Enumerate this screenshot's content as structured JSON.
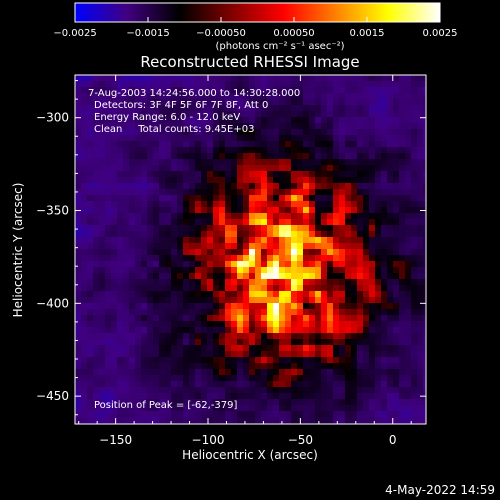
{
  "colorbar": {
    "ticks": [
      "-0.0025",
      "-0.0015",
      "-0.00050",
      "0.00050",
      "0.0015",
      "0.0025"
    ],
    "unit_label": "(photons cm⁻² s⁻¹ asec⁻²)",
    "colors": [
      "#0000ff",
      "#400080",
      "#000000",
      "#800000",
      "#ff0000",
      "#ff8000",
      "#ffff00",
      "#ffffff"
    ]
  },
  "chart_data": {
    "type": "heatmap",
    "title": "Reconstructed RHESSI Image",
    "xlabel": "Heliocentric X (arcsec)",
    "ylabel": "Heliocentric Y (arcsec)",
    "xlim": [
      -172,
      18
    ],
    "ylim": [
      -465,
      -277
    ],
    "xticks": [
      -150,
      -100,
      -50,
      0
    ],
    "yticks": [
      -300,
      -350,
      -400,
      -450
    ],
    "xtick_labels": [
      "−150",
      "−100",
      "−50",
      "0"
    ],
    "ytick_labels": [
      "−300",
      "−350",
      "−400",
      "−450"
    ],
    "color_range": [
      -0.0025,
      0.0025
    ],
    "peak": [
      -62,
      -379
    ],
    "annotations": [
      " 7-Aug-2003 14:24:56.000 to 14:30:28.000",
      "Detectors: 3F 4F 5F 6F 7F 8F, Att 0",
      "Energy Range: 6.0 - 12.0 keV",
      "Clean     Total counts: 9.45E+03"
    ],
    "peak_label": "Position of Peak = [-62,-379]"
  },
  "footer": {
    "date": "4-May-2022 14:59"
  }
}
